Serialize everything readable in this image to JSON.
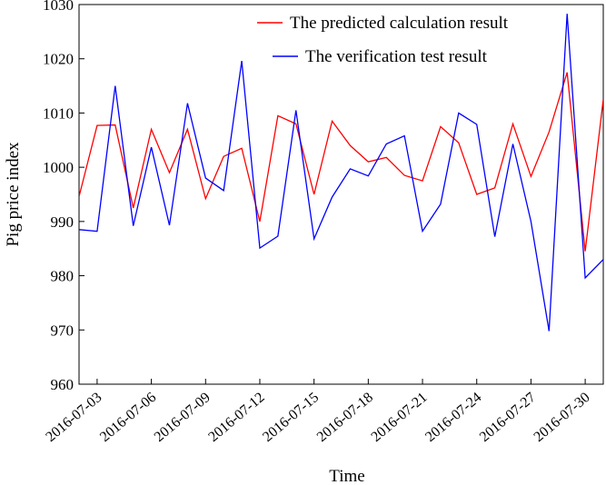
{
  "chart_data": {
    "type": "line",
    "xlabel": "Time",
    "ylabel": "Pig price index",
    "x": [
      "2016-07-02",
      "2016-07-03",
      "2016-07-04",
      "2016-07-05",
      "2016-07-06",
      "2016-07-07",
      "2016-07-08",
      "2016-07-09",
      "2016-07-10",
      "2016-07-11",
      "2016-07-12",
      "2016-07-13",
      "2016-07-14",
      "2016-07-15",
      "2016-07-16",
      "2016-07-17",
      "2016-07-18",
      "2016-07-19",
      "2016-07-20",
      "2016-07-21",
      "2016-07-22",
      "2016-07-23",
      "2016-07-24",
      "2016-07-25",
      "2016-07-26",
      "2016-07-27",
      "2016-07-28",
      "2016-07-29",
      "2016-07-30",
      "2016-07-31"
    ],
    "series": [
      {
        "name": "The predicted calculation result",
        "color": "#ff0000",
        "values": [
          994.6,
          1007.7,
          1007.8,
          992.5,
          1007,
          999,
          1007,
          994.2,
          1002,
          1003.5,
          990,
          1009.5,
          1008,
          995,
          1008.5,
          1004,
          1001,
          1001.8,
          998.5,
          997.5,
          1007.5,
          1004.5,
          995,
          996.2,
          1008,
          998.3,
          1006.5,
          1017.5,
          984.5,
          1012.5
        ]
      },
      {
        "name": "The verification test result",
        "color": "#0000ff",
        "values": [
          988.5,
          988.2,
          1015,
          989.2,
          1003.7,
          989.3,
          1011.8,
          998,
          995.7,
          1019.6,
          985.1,
          987.3,
          1010.5,
          986.8,
          994.5,
          999.7,
          998.4,
          1004.3,
          1005.8,
          988.2,
          993.2,
          1010,
          1007.9,
          987.2,
          1004.3,
          990,
          969.8,
          1028.3,
          979.6,
          983
        ]
      }
    ],
    "xlim": [
      "2016-07-02",
      "2016-07-31"
    ],
    "xticks": [
      "2016-07-03",
      "2016-07-06",
      "2016-07-09",
      "2016-07-12",
      "2016-07-15",
      "2016-07-18",
      "2016-07-21",
      "2016-07-24",
      "2016-07-27",
      "2016-07-30"
    ],
    "ylim": [
      960,
      1030
    ],
    "yticks": [
      960,
      970,
      980,
      990,
      1000,
      1010,
      1020,
      1030
    ],
    "grid": false,
    "legend": "upper right"
  }
}
